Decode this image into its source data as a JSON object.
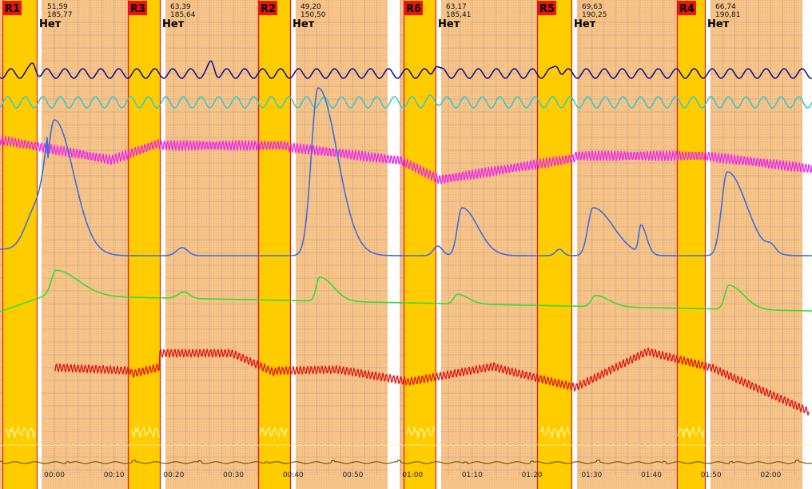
{
  "colors": {
    "background": "#ffffff",
    "segment_fill": "#f7c48a",
    "question_fill": "#ffcc00",
    "question_badge": "#ee1111",
    "onset_line": "#ee1111",
    "grid": "#8c8c8c",
    "channels": {
      "pneumo_upper": "#14148c",
      "pneumo_lower": "#3cc8c8",
      "cardio_pulse": "#ee22ee",
      "eda": "#3c6ee0",
      "eda_filtered": "#33dd33",
      "cardio": "#e01414",
      "activity": "#fff5a0",
      "baseline": "#6e5a00"
    }
  },
  "questions": [
    {
      "label": "R1",
      "value_a": "51,59",
      "value_b": "185,77",
      "answer": "Нет"
    },
    {
      "label": "R3",
      "value_a": "63,39",
      "value_b": "185,64",
      "answer": "Нет"
    },
    {
      "label": "R2",
      "value_a": "49,20",
      "value_b": "150,50",
      "answer": "Нет"
    },
    {
      "label": "R6",
      "value_a": "63,17",
      "value_b": "185,41",
      "answer": "Нет"
    },
    {
      "label": "R5",
      "value_a": "69,63",
      "value_b": "190,25",
      "answer": "Нет"
    },
    {
      "label": "R4",
      "value_a": "66,74",
      "value_b": "190,81",
      "answer": "Нет"
    }
  ],
  "time_axis": {
    "ticks": [
      "00:00",
      "00:10",
      "00:20",
      "00:30",
      "00:40",
      "00:50",
      "01:00",
      "01:10",
      "01:20",
      "01:30",
      "01:40",
      "01:50",
      "02:00"
    ]
  }
}
